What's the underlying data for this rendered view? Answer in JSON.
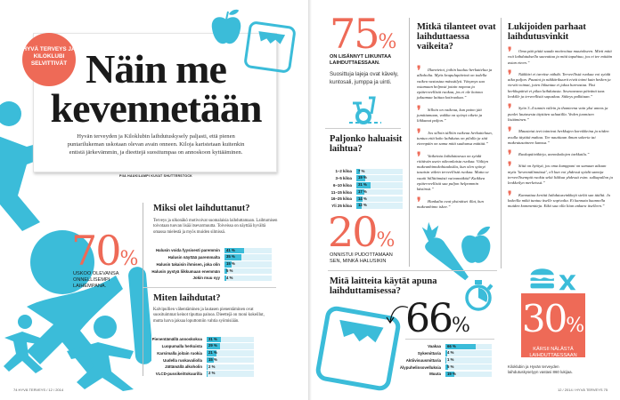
{
  "left_page": {
    "badge": "HYVÄ TERVEYS JA KILOKLUBI SELVITTIVÄT",
    "title_line1": "Näin me",
    "title_line2": "kevennetään",
    "intro": "Hyvän terveyden ja Kiloklubin laihdutuskysely paljasti, että pienen puntarilukeman uskotaan olevan avain onneen. Kiloja karistetaan kuitenkin entistä järkevämmin, ja dieettejä suositumpaa on annoskoon kyttääminen.",
    "byline": "PIIA HAUKILAMPI KUVAT SHUTTERSTOCK",
    "stat70": {
      "value": "70",
      "unit": "%",
      "caption": "USKOO OLEVANSA ONNELLISEMPI LAIHEMPANA."
    },
    "why": {
      "title": "Miksi olet laihduttanut?",
      "body": "Terveys ja ulkonäkö motivoivat suomalaisia laihduttamaan. Laihtumisen toivotaan tuovan lisää itsevarmuutta. Toiveissa on näyttää hyvältä omassa mielestä ja myös muiden silmissä.",
      "rows": [
        {
          "label": "Halusin voida fyysisesti paremmin",
          "value": 41
        },
        {
          "label": "Halusin näyttää paremmalta",
          "value": 35
        },
        {
          "label": "Halusin takaisin ihmisen, joka olin",
          "value": 15
        },
        {
          "label": "Halusin pystyä liikkumaan enemmän",
          "value": 5
        },
        {
          "label": "Jokin muu syy",
          "value": 4
        }
      ]
    },
    "how": {
      "title": "Miten laihdutat?",
      "body": "Kalvipullien vähentäminen ja lautasen pienentäminen ovat suosituimmat keinot tiputtaa painoa. Dieettejä on moni kokeillut, mutta harva jaksaa loputtomiin vahtia syömisiään.",
      "rows": [
        {
          "label": "Pienentämällä annoskokoa",
          "value": 31
        },
        {
          "label": "Luopumalla herkuista",
          "value": 29
        },
        {
          "label": "Karsimalla joitain ruokia",
          "value": 21
        },
        {
          "label": "Uudella ruokavaliolla",
          "value": 15
        },
        {
          "label": "Jättämällä alkoholin",
          "value": 2
        },
        {
          "label": "VLCD-pussikeittokuurilla",
          "value": 2
        }
      ]
    },
    "footer": "74 HYVÄ TERVEYS / 12 / 2014"
  },
  "right_page": {
    "stat75": {
      "value": "75",
      "unit": "%",
      "caption": "ON LISÄNNYT LIIKUNTAA LAIHDUTTAESSAAN.",
      "note": "Suosittuja lajeja ovat kävely, kuntosali, jumppa ja uinti."
    },
    "how_much": {
      "title": "Paljonko haluaisit laihtua?",
      "rows": [
        {
          "label": "1–2 kiloa",
          "value": 7
        },
        {
          "label": "3–5 kiloa",
          "value": 19
        },
        {
          "label": "6–10 kiloa",
          "value": 31
        },
        {
          "label": "11–15 kiloa",
          "value": 17
        },
        {
          "label": "16–25 kiloa",
          "value": 14
        },
        {
          "label": "Yli 25 kiloa",
          "value": 12
        }
      ]
    },
    "stat20": {
      "value": "20",
      "unit": "%",
      "caption": "ONNISTUI PUDOTTAMAAN SEN, MINKÄ HALUSIKIN"
    },
    "hard": {
      "title": "Mitkä tilanteet ovat laihduttaessa vaikeita?",
      "quotes": [
        "Illanvietot, joihin kuuluu herkuttelua ja alkoholia. Myös krapulapäivinä on todella vaikea vastustaa mässäilyä. Väsymys saa ostamaan helposti jotain nopeaa ja epäterveellistä ruokaa, jos ei ole kotona jaksamaa laittaa kotiruokaa.”",
        "Silloin on vaikeaa, kun paino jää jumittamaan, vaikka on syönyt oikein ja liikkunut paljon.”",
        "Jos silloin tällöin vaikeaa herkutteluun, tuntuu että koko laihdutus on pilalla ja sitä eteenpäin on sama mitä suuhunsa mättää.”",
        "Vaikeinta laihduttaessa on syödä riittävän usein oikeanlaista ruokaa. Välttyn makeanhimokohtauksilta, kun olen syönyt tasaisin välein terveellistä ruokaa. Mutta se vaatii hillittömästi vaivannäköä! Kaikkea epäterveellistä saa paljon helpommin käsiinsä.”",
        "Hankalia ovat yksinäiset illat, kun makeanhimo iskee.”"
      ]
    },
    "tips": {
      "title": "Lukijoiden parhaat laihdutusvinkit",
      "quotes": [
        "Oma pää pitää saada motivoitua muutokseen. Mieti mitä voit laihdutuksella saavuttaa ja mitä tapahtuu, jos et tee mitään asian eteen.”",
        "Näkkäri ei tarvitse nähdä. Terveellistä ruokaa voi syödä aika paljon. Paastot ja näkkärikuurit eivät toimi kuin hetken ja vievät voimat, joten liikuntaa ei jaksa harrastaa. Yksi herkkupäivä ei pilaa laihdutusta. Seuraavana päivänä taas lenkille ja terveellistä sapuskaa. Sitkeys palkitaan.”",
        "Syön 3–4 tunnin välein ja ihanteena vain yksi annos ja puolet lautasesta täyttäen salaatilla. Veden juomisen lisääminen.”",
        "Maustetut teet toimivat herkkujen korvikkeina ja niiden avulla täyttää mahaa. Tee nautitaan ilman sokeria tai makeutusaineen kanssa.”",
        "Ruokapäiväkirja, annoskokojen tarkkailu.”",
        "Siitä on hyötyä, jos oma kumppani on samaan aikaan myös ’kevennälinnässä’, eli kun voi yhdessä syödä samoja terveellisempiä ruokia sekä liikkua yhdessä esim. sulkapallon ja lenkkeilyn merkeissä.”",
        "Kannattaa kerätä laihdutusvinkkejä sieltä sun täältä. Ja kokeilla mikä tuntuu itselle sopivalta. Ei kannata kuunnella muiden kommentteja. Eikä saa olla liian ankara itselleen.”"
      ]
    },
    "devices": {
      "title": "Mitä laitteita käytät apuna laihduttamisessa?",
      "stat_value": "66",
      "stat_unit": "%",
      "rows": [
        {
          "label": "Vaakaa",
          "value": 66
        },
        {
          "label": "Sykemittaria",
          "value": 4
        },
        {
          "label": "Aktiivisuusmittaria",
          "value": 1
        },
        {
          "label": "Älypuhelinsovelluksia",
          "value": 5
        },
        {
          "label": "Muuta",
          "value": 19
        }
      ]
    },
    "stat30": {
      "value": "30",
      "unit": "%",
      "caption": "KÄRSII NÄLÄSTÄ LAIHDUTTAESSAAN"
    },
    "source": "Kiloklubin ja Hyvän terveyden laihdutuskyselyyn vastasi 860 lukijaa.",
    "footer": "12 / 2014 / HYVÄ TERVEYS 75"
  },
  "colors": {
    "accent": "#ee6a57",
    "cyan": "#3bbcd9",
    "bar_track": "#dcf1f8"
  }
}
